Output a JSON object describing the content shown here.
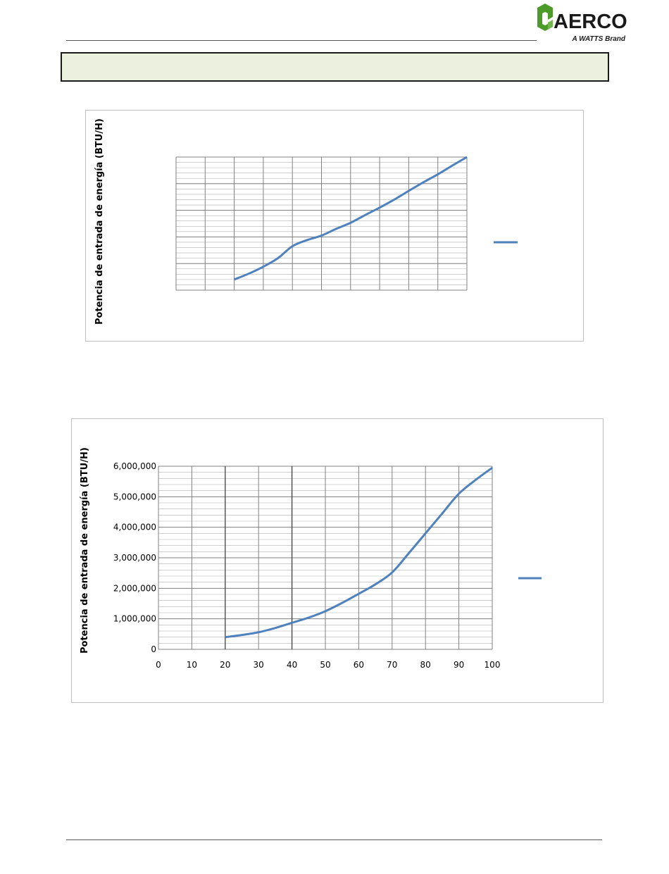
{
  "header": {
    "logo_text": "AERCO",
    "logo_tagline": "A WATTS Brand",
    "logo_color": "#4c9a2a",
    "section_box_color": "#ebf1de"
  },
  "charts": [
    {
      "ylabel": "Potencia de entrada de energía (BTU/H)",
      "line_color": "#4f81bd",
      "grid_color": "#808080",
      "legend_label": "",
      "chart_data": {
        "type": "line",
        "title": "",
        "xlabel": "",
        "ylabel": "Potencia de entrada de energía (BTU/H)",
        "xlim": [
          0,
          100
        ],
        "ylim": [
          0,
          5
        ],
        "ticks_visible": false,
        "x": [
          20,
          25,
          30,
          35,
          40,
          45,
          50,
          55,
          60,
          65,
          70,
          75,
          80,
          85,
          90,
          95,
          100
        ],
        "y": [
          0.4,
          0.62,
          0.88,
          1.2,
          1.65,
          1.88,
          2.05,
          2.3,
          2.53,
          2.82,
          3.1,
          3.4,
          3.73,
          4.05,
          4.35,
          4.68,
          5.0
        ],
        "legend": "right",
        "grid": true
      }
    },
    {
      "ylabel": "Potencia de entrada de energía (BTU/H)",
      "line_color": "#4f81bd",
      "grid_color": "#808080",
      "legend_label": "",
      "chart_data": {
        "type": "line",
        "title": "",
        "xlabel": "",
        "ylabel": "Potencia de entrada de energía (BTU/H)",
        "xlim": [
          0,
          100
        ],
        "ylim": [
          0,
          6000000
        ],
        "x_ticks": [
          "0",
          "10",
          "20",
          "30",
          "40",
          "50",
          "60",
          "70",
          "80",
          "90",
          "100"
        ],
        "y_ticks": [
          "0",
          "1,000,000",
          "2,000,000",
          "3,000,000",
          "4,000,000",
          "5,000,000",
          "6,000,000"
        ],
        "x": [
          20,
          25,
          30,
          35,
          40,
          45,
          50,
          55,
          60,
          65,
          70,
          75,
          80,
          85,
          90,
          95,
          100
        ],
        "y": [
          400000,
          470000,
          560000,
          700000,
          870000,
          1040000,
          1250000,
          1520000,
          1820000,
          2130000,
          2520000,
          3150000,
          3800000,
          4450000,
          5100000,
          5550000,
          5950000
        ],
        "legend": "right",
        "grid": true
      }
    }
  ]
}
